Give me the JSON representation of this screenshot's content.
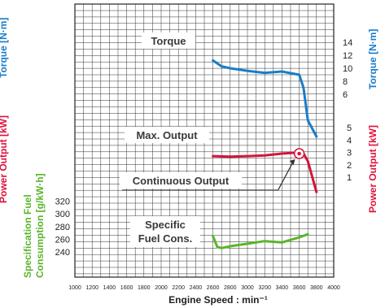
{
  "chart_data": {
    "type": "line",
    "x_axis": {
      "title": "Engine Speed : min⁻¹",
      "ticks": [
        1000,
        1200,
        1400,
        1600,
        1800,
        2000,
        2200,
        2400,
        2600,
        2800,
        3000,
        3200,
        3400,
        3600,
        3800,
        4000
      ],
      "range": [
        1000,
        4000
      ]
    },
    "axes": {
      "torque": {
        "title": "Torque [N·m]",
        "ticks": [
          6,
          8,
          10,
          12,
          14
        ],
        "color": "#1a7cc9"
      },
      "power": {
        "title": "Power Output [kW]",
        "ticks": [
          1,
          2,
          3,
          4,
          5
        ],
        "color": "#e0103a"
      },
      "fuel": {
        "title": "Specification Fuel Consumption [g/kW·h]",
        "title_line1": "Specification Fuel",
        "title_line2": "Consumption [g/kW·h]",
        "ticks": [
          240,
          260,
          280,
          300,
          320
        ],
        "color": "#5ab52a"
      }
    },
    "cutoff_left_labels": {
      "torque": "Torque [N·m]",
      "power": "Power Output [kW]"
    },
    "annotations": {
      "torque": "Torque",
      "max_output": "Max. Output",
      "continuous_output": "Continuous Output",
      "fuel_line1": "Specific",
      "fuel_line2": "Fuel Cons."
    },
    "series": [
      {
        "name": "Torque",
        "axis": "torque",
        "color": "#1a7cc9",
        "x": [
          2600,
          2700,
          2800,
          3000,
          3200,
          3400,
          3600,
          3650,
          3700,
          3800
        ],
        "y": [
          11.2,
          10.3,
          10.0,
          9.6,
          9.3,
          9.5,
          9.0,
          7.0,
          2.0,
          -0.5
        ]
      },
      {
        "name": "Max. Output",
        "axis": "power",
        "color": "#d4143c",
        "x": [
          2600,
          2800,
          3000,
          3200,
          3400,
          3600,
          3650,
          3700,
          3800
        ],
        "y": [
          2.7,
          2.65,
          2.7,
          2.75,
          2.9,
          3.0,
          2.9,
          2.3,
          -0.2
        ]
      },
      {
        "name": "Specific Fuel Cons.",
        "axis": "fuel",
        "color": "#5ab52a",
        "x": [
          2600,
          2650,
          2700,
          2800,
          3000,
          3200,
          3400,
          3600,
          3700
        ],
        "y": [
          265,
          248,
          246,
          249,
          253,
          257,
          255,
          263,
          268
        ]
      }
    ],
    "continuous_point": {
      "x": 3600,
      "y": 2.9
    },
    "grid": true
  }
}
